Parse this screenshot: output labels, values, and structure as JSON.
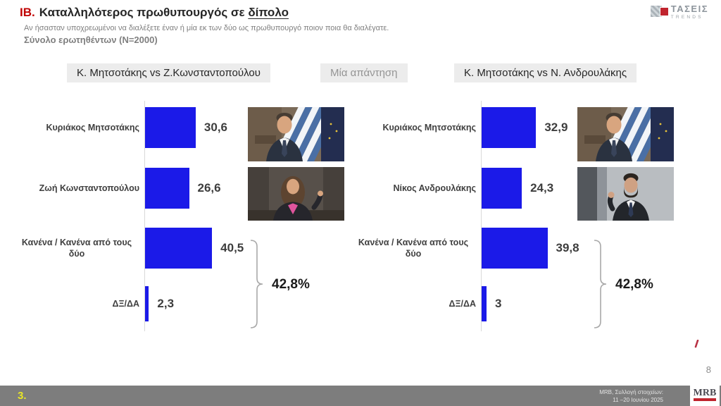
{
  "header": {
    "section_number": "ΙΒ.",
    "title_main": "Καταλληλότερος πρωθυπουργός σε ",
    "title_underlined": "δίπολο",
    "subtitle": "Αν ήσασταν υποχρεωμένοι να διαλέξετε έναν ή μία εκ των δύο ως πρωθυπουργό ποιον ποια θα διαλέγατε.",
    "sample_note": "Σύνολο ερωτηθέντων (N=2000)"
  },
  "brand": {
    "name": "ΤΑΣΕΙΣ",
    "subname": "TRENDS"
  },
  "answer_mode_chip": "Μία απάντηση",
  "chart_data": [
    {
      "type": "bar",
      "orientation": "horizontal",
      "title": "Κ. Μητσοτάκης vs Ζ.Κωνσταντοπούλου",
      "bar_color": "#1b1ae8",
      "xlim": [
        0,
        45
      ],
      "grid": false,
      "categories": [
        "Κυριάκος Μητσοτάκης",
        "Ζωή Κωνσταντοπούλου",
        "Κανένα / Κανένα από τους δύο",
        "ΔΞ/ΔΑ"
      ],
      "values": [
        30.6,
        26.6,
        40.5,
        2.3
      ],
      "value_labels": [
        "30,6",
        "26,6",
        "40,5",
        "2,3"
      ],
      "photos": [
        "mitsotakis-photo",
        "konstantopoulou-photo"
      ],
      "bracket": {
        "label": "42,8%",
        "covers": [
          "Κανένα / Κανένα από τους δύο",
          "ΔΞ/ΔΑ"
        ]
      }
    },
    {
      "type": "bar",
      "orientation": "horizontal",
      "title": "Κ. Μητσοτάκης vs Ν. Ανδρουλάκης",
      "bar_color": "#1b1ae8",
      "xlim": [
        0,
        45
      ],
      "grid": false,
      "categories": [
        "Κυριάκος Μητσοτάκης",
        "Νίκος Ανδρουλάκης",
        "Κανένα / Κανένα από τους δύο",
        "ΔΞ/ΔΑ"
      ],
      "values": [
        32.9,
        24.3,
        39.8,
        3
      ],
      "value_labels": [
        "32,9",
        "24,3",
        "39,8",
        "3"
      ],
      "photos": [
        "mitsotakis-photo",
        "androulakis-photo"
      ],
      "bracket": {
        "label": "42,8%",
        "covers": [
          "Κανένα / Κανένα από τους δύο",
          "ΔΞ/ΔΑ"
        ]
      }
    }
  ],
  "footer": {
    "slide_marker": "3.",
    "source_line1": "MRB, Συλλογή στοιχείων:",
    "source_line2": "11 –20 Ιουνίου 2025",
    "page_number": "8",
    "mrb_logo_text": "MRB"
  }
}
